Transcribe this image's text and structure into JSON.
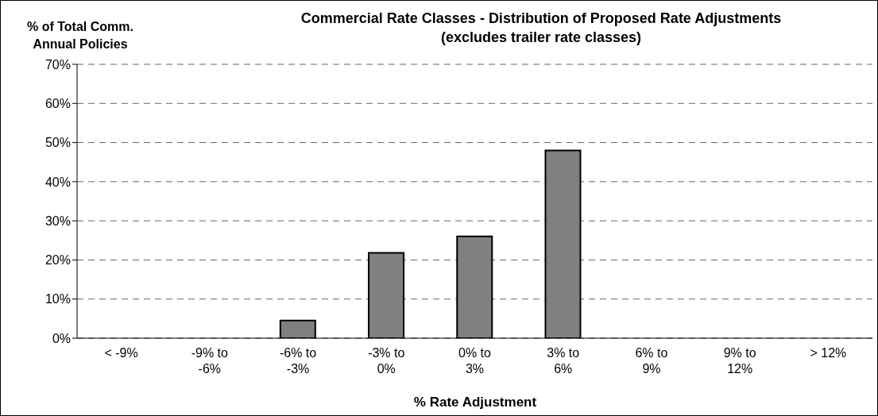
{
  "chart_data": {
    "type": "bar",
    "title": "Commercial Rate Classes - Distribution of Proposed Rate Adjustments",
    "subtitle": "(excludes trailer rate classes)",
    "ylabel": "% of Total Comm. Annual Policies",
    "xlabel": "% Rate Adjustment",
    "categories": [
      "< -9%",
      "-9% to -6%",
      "-6% to -3%",
      "-3% to 0%",
      "0% to 3%",
      "3% to 6%",
      "6% to 9%",
      "9% to 12%",
      "> 12%"
    ],
    "values": [
      0,
      0,
      4.5,
      21.8,
      26,
      48,
      0,
      0,
      0
    ],
    "color": "#808080",
    "ylim": [
      0,
      70
    ],
    "yticks": [
      {
        "value": 0,
        "label": "0%"
      },
      {
        "value": 10,
        "label": "10%"
      },
      {
        "value": 20,
        "label": "20%"
      },
      {
        "value": 30,
        "label": "30%"
      },
      {
        "value": 40,
        "label": "40%"
      },
      {
        "value": 50,
        "label": "50%"
      },
      {
        "value": 60,
        "label": "60%"
      },
      {
        "value": 70,
        "label": "70%"
      }
    ],
    "grid": "y"
  }
}
